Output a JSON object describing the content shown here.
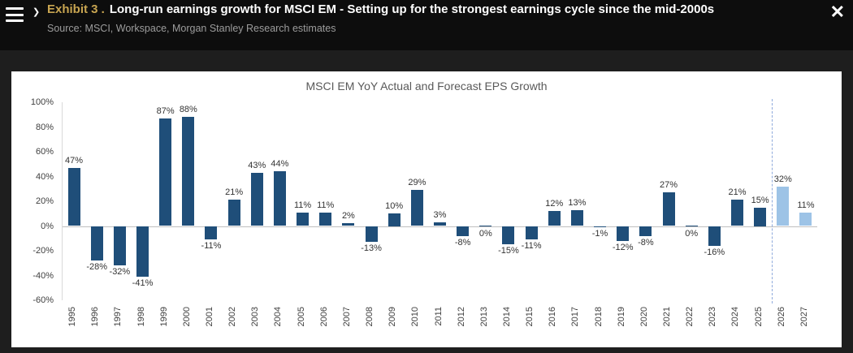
{
  "window": {
    "chevron": "❯",
    "exhibit_label": "Exhibit  3 .",
    "title": "Long-run earnings growth for MSCI EM - Setting up for the strongest earnings cycle since the mid-2000s",
    "source": "Source: MSCI, Workspace, Morgan Stanley Research estimates",
    "close": "✕"
  },
  "colors": {
    "actual_bar": "#1F4E79",
    "forecast_bar": "#9DC3E6",
    "divider": "#8FAADC",
    "accent_gold": "#C8A551"
  },
  "chart_data": {
    "type": "bar",
    "title": "MSCI EM YoY Actual and Forecast EPS Growth",
    "categories": [
      "1995",
      "1996",
      "1997",
      "1998",
      "1999",
      "2000",
      "2001",
      "2002",
      "2003",
      "2004",
      "2005",
      "2006",
      "2007",
      "2008",
      "2009",
      "2010",
      "2011",
      "2012",
      "2013",
      "2014",
      "2015",
      "2016",
      "2017",
      "2018",
      "2019",
      "2020",
      "2021",
      "2022",
      "2023",
      "2024",
      "2025",
      "2026",
      "2027"
    ],
    "values": [
      47,
      -28,
      -32,
      -41,
      87,
      88,
      -11,
      21,
      43,
      44,
      11,
      11,
      2,
      -13,
      10,
      29,
      3,
      -8,
      0,
      -15,
      -11,
      12,
      13,
      -1,
      -12,
      -8,
      27,
      0,
      -16,
      21,
      15,
      32,
      11
    ],
    "forecast_from_index": 31,
    "ylim": [
      -60,
      100
    ],
    "ytick_values": [
      100,
      80,
      60,
      40,
      20,
      0,
      -20,
      -40,
      -60
    ],
    "ytick_labels": [
      "100%",
      "80%",
      "60%",
      "40%",
      "20%",
      "0%",
      "-20%",
      "-40%",
      "-60%"
    ],
    "grid": false,
    "legend": "none",
    "series_notes": "dark navy = actual EPS growth, light blue = forecast (2026-2027), dashed vertical line separates actuals from forecast"
  }
}
